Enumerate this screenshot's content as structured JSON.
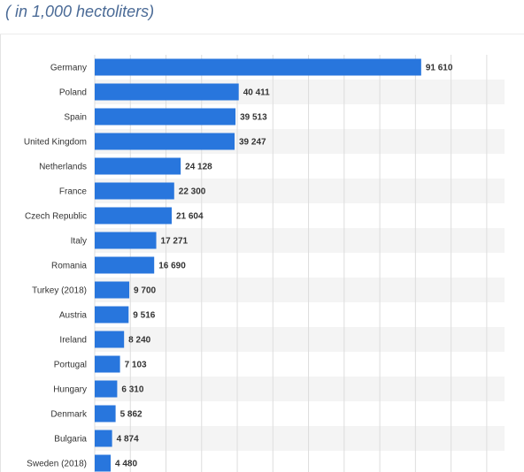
{
  "header": {
    "subtitle": "( in 1,000 hectoliters)"
  },
  "colors": {
    "bar": "#2876dd",
    "stripe": "#f4f4f4",
    "grid": "#dddddd"
  },
  "chart_data": {
    "type": "bar",
    "orientation": "horizontal",
    "title": "",
    "subtitle": "( in 1,000 hectoliters)",
    "xlabel": "",
    "ylabel": "",
    "xlim": [
      0,
      115000
    ],
    "grid": true,
    "categories": [
      "Germany",
      "Poland",
      "Spain",
      "United Kingdom",
      "Netherlands",
      "France",
      "Czech Republic",
      "Italy",
      "Romania",
      "Turkey (2018)",
      "Austria",
      "Ireland",
      "Portugal",
      "Hungary",
      "Denmark",
      "Bulgaria",
      "Sweden (2018)"
    ],
    "values": [
      91610,
      40411,
      39513,
      39247,
      24128,
      22300,
      21604,
      17271,
      16690,
      9700,
      9516,
      8240,
      7103,
      6310,
      5862,
      4874,
      4480
    ],
    "value_labels": [
      "91 610",
      "40 411",
      "39 513",
      "39 247",
      "24 128",
      "22 300",
      "21 604",
      "17 271",
      "16 690",
      "9 700",
      "9 516",
      "8 240",
      "7 103",
      "6 310",
      "5 862",
      "4 874",
      "4 480"
    ]
  }
}
